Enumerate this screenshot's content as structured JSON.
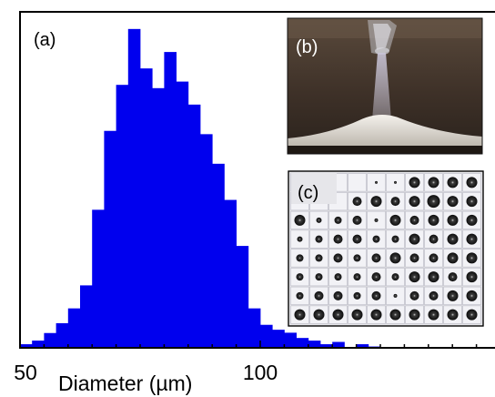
{
  "chart_data": {
    "type": "bar",
    "xlabel": "Diameter (µm)",
    "x_tick_labels": [
      "50",
      "100"
    ],
    "xlim": [
      50,
      150
    ],
    "ylim": [
      0,
      1.0
    ],
    "bin_width": 2.5,
    "bin_starts": [
      50,
      52.5,
      55,
      57.5,
      60,
      62.5,
      65,
      67.5,
      70,
      72.5,
      75,
      77.5,
      80,
      82.5,
      85,
      87.5,
      90,
      92.5,
      95,
      97.5,
      100,
      102.5,
      105,
      107.5,
      110,
      112.5,
      115,
      117.5,
      120,
      122.5,
      125
    ],
    "values": [
      0.011,
      0.022,
      0.045,
      0.075,
      0.12,
      0.19,
      0.42,
      0.66,
      0.8,
      0.97,
      0.85,
      0.79,
      0.9,
      0.81,
      0.74,
      0.65,
      0.56,
      0.45,
      0.31,
      0.12,
      0.07,
      0.055,
      0.046,
      0.03,
      0.022,
      0.011,
      0.018,
      0.0,
      0.011,
      0.004,
      0.0
    ],
    "bar_color": "#0000ee",
    "grid": false,
    "panel_labels": {
      "a": "(a)",
      "b": "(b)",
      "c": "(c)"
    },
    "inset_b": {
      "description_icon": "photo-droplet-jet-powder-pile"
    },
    "inset_c": {
      "description_icon": "microscope-droplet-grid",
      "rows": 8,
      "cols": 10
    }
  }
}
